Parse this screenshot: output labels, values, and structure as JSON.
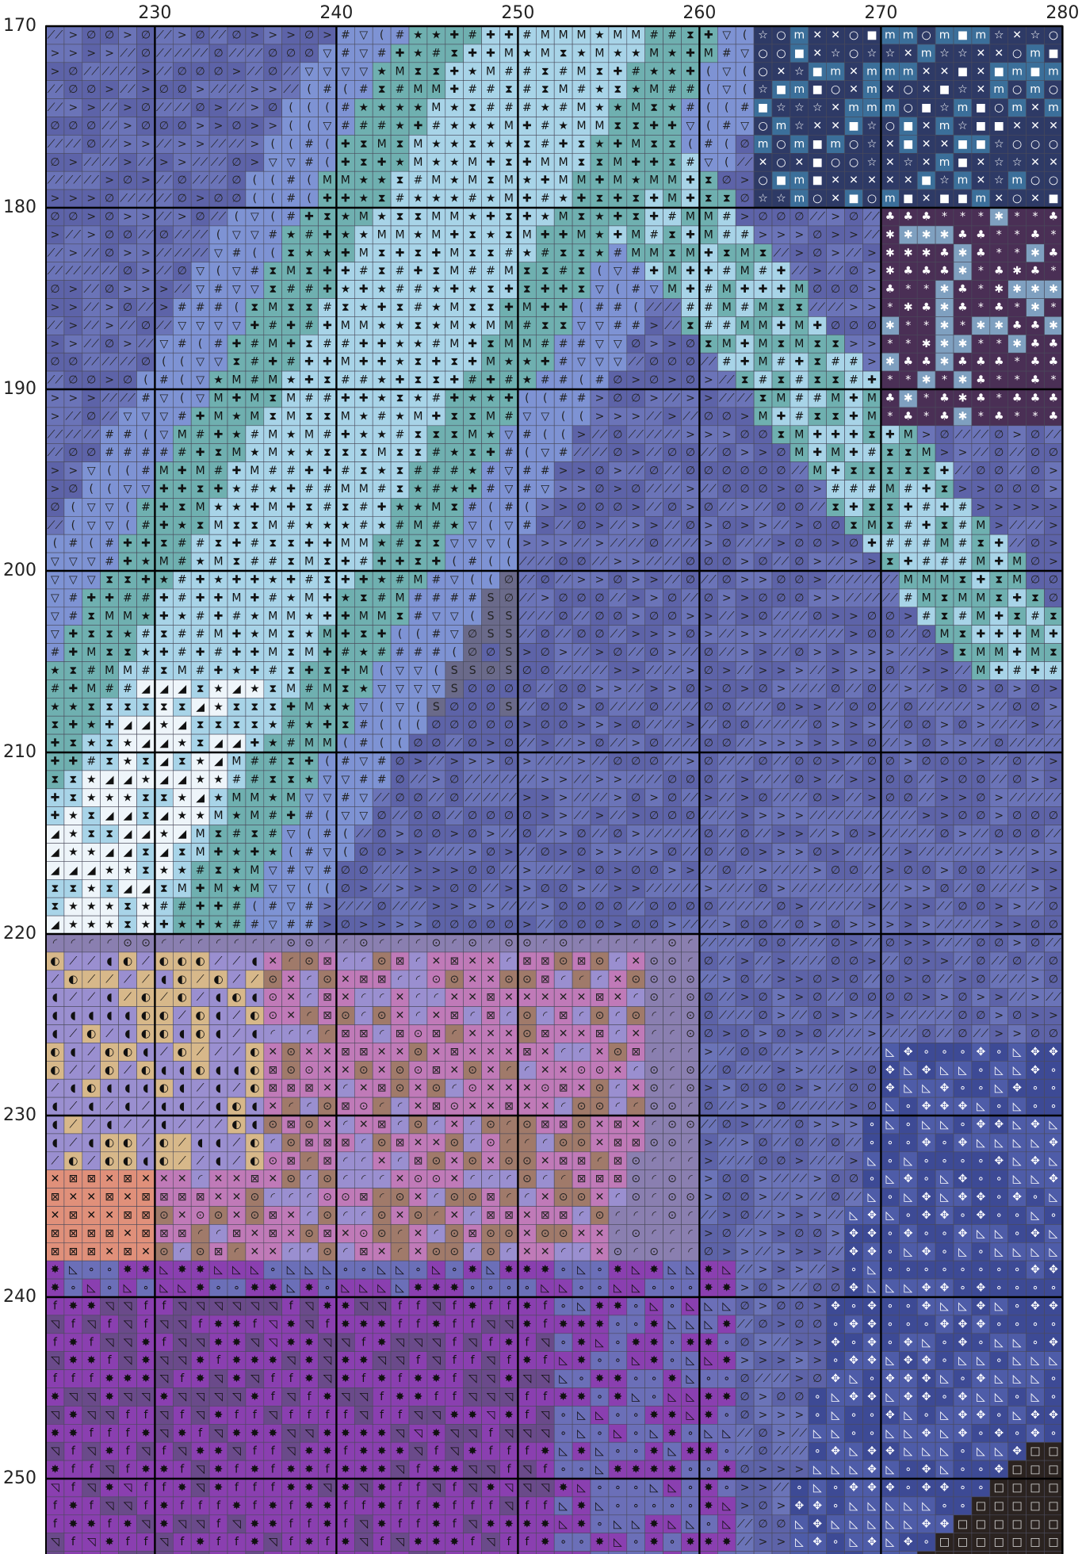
{
  "top_labels": [
    "230",
    "240",
    "250",
    "260",
    "270",
    "280"
  ],
  "left_labels": [
    "170",
    "180",
    "190",
    "200",
    "210",
    "220",
    "230",
    "240",
    "250"
  ]
}
